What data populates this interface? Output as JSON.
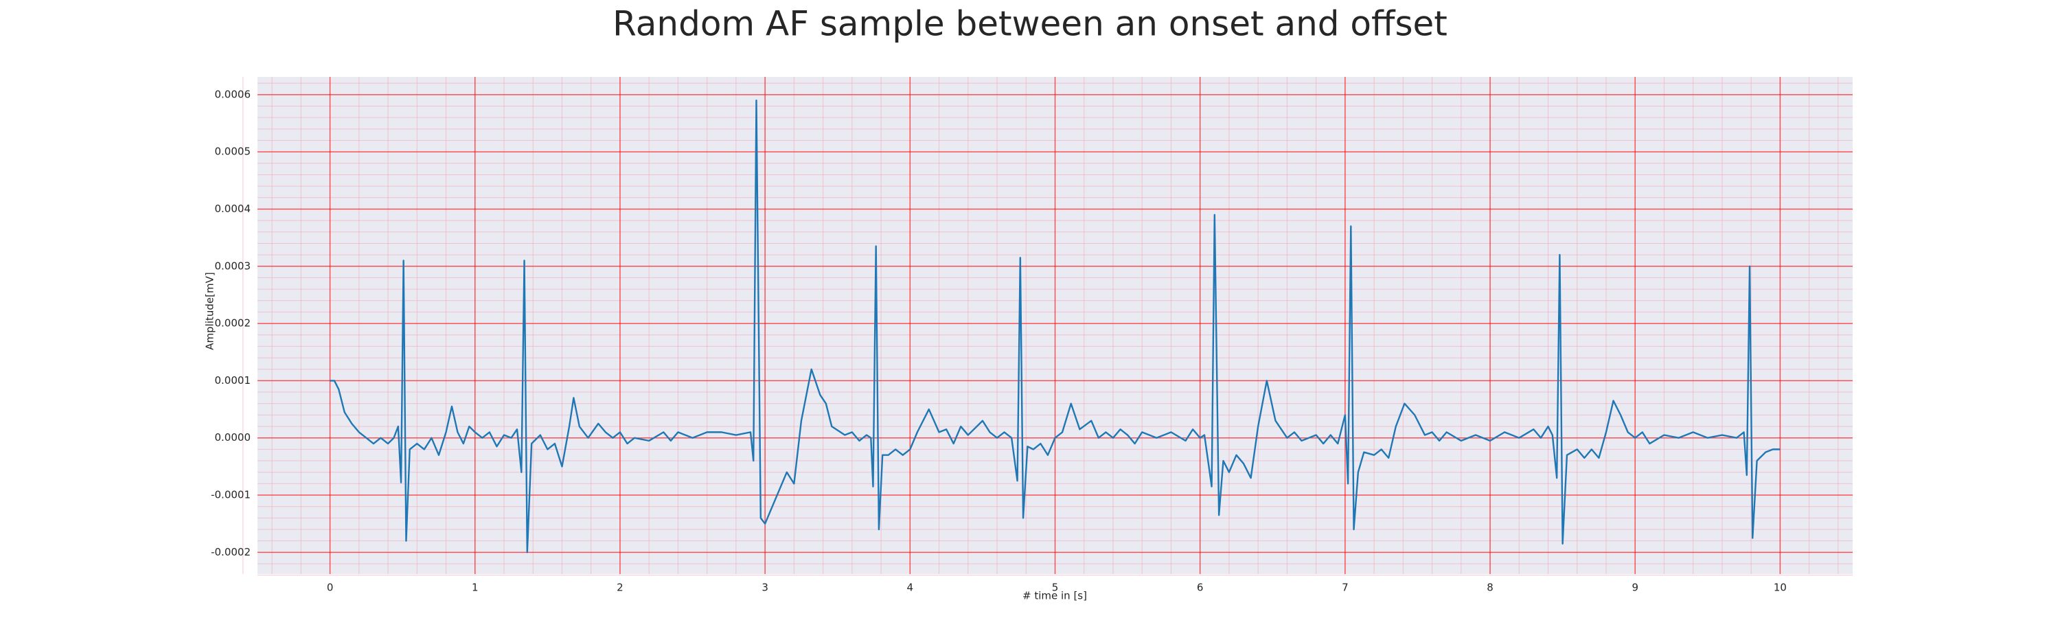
{
  "chart_data": {
    "type": "line",
    "title": "Random AF sample between an onset and offset",
    "xlabel": "# time in [s]",
    "ylabel": "Amplitude[mV]",
    "color": "#1f77b4",
    "grid": true,
    "minor_grid": true,
    "xlim": [
      -0.5,
      10.5
    ],
    "ylim": [
      -0.000238,
      0.000631
    ],
    "xticks": [
      0,
      1,
      2,
      3,
      4,
      5,
      6,
      7,
      8,
      9,
      10
    ],
    "yticks": [
      -0.0002,
      -0.0001,
      {
        "value": 0,
        "label": "0.0000"
      },
      0.0001,
      0.0002,
      0.0003,
      0.0004,
      0.0005,
      0.0006
    ],
    "x": [
      0,
      0.03,
      0.06,
      0.1,
      0.15,
      0.2,
      0.25,
      0.3,
      0.35,
      0.4,
      0.44,
      0.47,
      0.49,
      0.507,
      0.525,
      0.55,
      0.6,
      0.65,
      0.7,
      0.75,
      0.8,
      0.84,
      0.88,
      0.92,
      0.96,
      1.0,
      1.05,
      1.1,
      1.15,
      1.2,
      1.25,
      1.29,
      1.32,
      1.34,
      1.36,
      1.39,
      1.45,
      1.5,
      1.55,
      1.6,
      1.65,
      1.68,
      1.72,
      1.78,
      1.85,
      1.9,
      1.95,
      2.0,
      2.05,
      2.1,
      2.2,
      2.3,
      2.35,
      2.4,
      2.5,
      2.6,
      2.7,
      2.8,
      2.9,
      2.92,
      2.94,
      2.97,
      3.0,
      3.1,
      3.15,
      3.2,
      3.25,
      3.32,
      3.38,
      3.42,
      3.46,
      3.55,
      3.6,
      3.65,
      3.7,
      3.73,
      3.745,
      3.765,
      3.785,
      3.81,
      3.85,
      3.9,
      3.95,
      4.0,
      4.05,
      4.13,
      4.2,
      4.25,
      4.3,
      4.35,
      4.4,
      4.5,
      4.55,
      4.6,
      4.65,
      4.7,
      4.74,
      4.76,
      4.78,
      4.81,
      4.85,
      4.9,
      4.95,
      5.0,
      5.05,
      5.11,
      5.17,
      5.25,
      5.3,
      5.35,
      5.4,
      5.45,
      5.5,
      5.55,
      5.6,
      5.7,
      5.8,
      5.9,
      5.95,
      6.0,
      6.03,
      6.08,
      6.1,
      6.13,
      6.16,
      6.2,
      6.25,
      6.3,
      6.35,
      6.4,
      6.46,
      6.52,
      6.6,
      6.65,
      6.7,
      6.8,
      6.85,
      6.9,
      6.95,
      7.0,
      7.02,
      7.04,
      7.06,
      7.09,
      7.13,
      7.2,
      7.25,
      7.3,
      7.35,
      7.41,
      7.48,
      7.55,
      7.6,
      7.65,
      7.7,
      7.8,
      7.9,
      8.0,
      8.1,
      8.2,
      8.3,
      8.35,
      8.4,
      8.43,
      8.46,
      8.48,
      8.5,
      8.53,
      8.6,
      8.65,
      8.7,
      8.75,
      8.8,
      8.85,
      8.9,
      8.95,
      9.0,
      9.05,
      9.1,
      9.2,
      9.3,
      9.4,
      9.5,
      9.6,
      9.7,
      9.75,
      9.77,
      9.79,
      9.81,
      9.84,
      9.9,
      9.95,
      10.0
    ],
    "values": [
      0.0001,
      0.0001,
      8.5e-05,
      4.5e-05,
      2.5e-05,
      1e-05,
      0,
      -1e-05,
      0,
      -1e-05,
      0,
      2e-05,
      -7.8e-05,
      0.00031,
      -0.00018,
      -2e-05,
      -1e-05,
      -2e-05,
      0,
      -3e-05,
      1e-05,
      5.5e-05,
      1e-05,
      -1e-05,
      2e-05,
      1e-05,
      0,
      1e-05,
      -1.5e-05,
      5e-06,
      0,
      1.5e-05,
      -6e-05,
      0.00031,
      -0.0002,
      -1e-05,
      5e-06,
      -2e-05,
      -1e-05,
      -5e-05,
      2e-05,
      7e-05,
      2e-05,
      0,
      2.5e-05,
      1e-05,
      0,
      1e-05,
      -1e-05,
      0,
      -5e-06,
      1e-05,
      -5e-06,
      1e-05,
      0,
      1e-05,
      1e-05,
      5e-06,
      1e-05,
      -4e-05,
      0.00059,
      -0.00014,
      -0.00015,
      -9e-05,
      -6e-05,
      -8e-05,
      3e-05,
      0.00012,
      7.5e-05,
      6e-05,
      2e-05,
      5e-06,
      1e-05,
      -5e-06,
      5e-06,
      0,
      -8.5e-05,
      0.000335,
      -0.00016,
      -3e-05,
      -3e-05,
      -2e-05,
      -3e-05,
      -2e-05,
      1e-05,
      5e-05,
      1e-05,
      1.5e-05,
      -1e-05,
      2e-05,
      5e-06,
      3e-05,
      1e-05,
      0,
      1e-05,
      0,
      -7.5e-05,
      0.000315,
      -0.00014,
      -1.5e-05,
      -2e-05,
      -1e-05,
      -3e-05,
      0,
      1e-05,
      6e-05,
      1.5e-05,
      3e-05,
      0,
      1e-05,
      0,
      1.5e-05,
      5e-06,
      -1e-05,
      1e-05,
      0,
      1e-05,
      -5e-06,
      1.5e-05,
      0,
      5e-06,
      -8.5e-05,
      0.00039,
      -0.000135,
      -4e-05,
      -6e-05,
      -3e-05,
      -4.5e-05,
      -7e-05,
      2e-05,
      0.0001,
      3e-05,
      0,
      1e-05,
      -5e-06,
      5e-06,
      -1e-05,
      5e-06,
      -1e-05,
      4e-05,
      -8e-05,
      0.00037,
      -0.00016,
      -6e-05,
      -2.5e-05,
      -3e-05,
      -2e-05,
      -3.5e-05,
      2e-05,
      6e-05,
      4e-05,
      5e-06,
      1e-05,
      -5e-06,
      1e-05,
      -5e-06,
      5e-06,
      -5e-06,
      1e-05,
      0,
      1.5e-05,
      0,
      2e-05,
      5e-06,
      -7e-05,
      0.00032,
      -0.000185,
      -3e-05,
      -2e-05,
      -3.5e-05,
      -2e-05,
      -3.5e-05,
      1e-05,
      6.5e-05,
      4e-05,
      1e-05,
      0,
      1e-05,
      -1e-05,
      5e-06,
      0,
      1e-05,
      0,
      5e-06,
      0,
      1e-05,
      -6.5e-05,
      0.0003,
      -0.000175,
      -4e-05,
      -2.5e-05,
      -2e-05,
      -2e-05
    ]
  }
}
